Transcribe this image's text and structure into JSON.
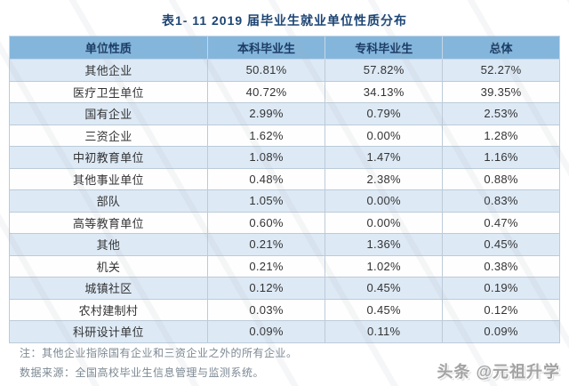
{
  "chart_data": {
    "type": "table",
    "title": "表1- 11  2019 届毕业生就业单位性质分布",
    "columns": [
      "单位性质",
      "本科毕业生",
      "专科毕业生",
      "总体"
    ],
    "rows": [
      [
        "其他企业",
        "50.81%",
        "57.82%",
        "52.27%"
      ],
      [
        "医疗卫生单位",
        "40.72%",
        "34.13%",
        "39.35%"
      ],
      [
        "国有企业",
        "2.99%",
        "0.79%",
        "2.53%"
      ],
      [
        "三资企业",
        "1.62%",
        "0.00%",
        "1.28%"
      ],
      [
        "中初教育单位",
        "1.08%",
        "1.47%",
        "1.16%"
      ],
      [
        "其他事业单位",
        "0.48%",
        "2.38%",
        "0.88%"
      ],
      [
        "部队",
        "1.05%",
        "0.00%",
        "0.83%"
      ],
      [
        "高等教育单位",
        "0.60%",
        "0.00%",
        "0.47%"
      ],
      [
        "其他",
        "0.21%",
        "1.36%",
        "0.45%"
      ],
      [
        "机关",
        "0.21%",
        "1.02%",
        "0.38%"
      ],
      [
        "城镇社区",
        "0.12%",
        "0.45%",
        "0.19%"
      ],
      [
        "农村建制村",
        "0.03%",
        "0.45%",
        "0.12%"
      ],
      [
        "科研设计单位",
        "0.09%",
        "0.11%",
        "0.09%"
      ]
    ],
    "layout": {
      "grid": true,
      "header_position": "top",
      "row_striping": "odd-light-blue"
    }
  },
  "notes": [
    "注：其他企业指除国有企业和三资企业之外的所有企业。",
    "数据来源：全国高校毕业生信息管理与监测系统。"
  ],
  "watermark": "头条 @元祖升学",
  "colors": {
    "header_bg": "#84b6dc",
    "header_text": "#1c3c64",
    "row_alt_bg": "#dde9f5",
    "row_bg": "#fefefe",
    "border": "#bccbd8",
    "title_text": "#1c4473",
    "note_text": "#7c8893",
    "byline_text": "#a3a3a3"
  }
}
